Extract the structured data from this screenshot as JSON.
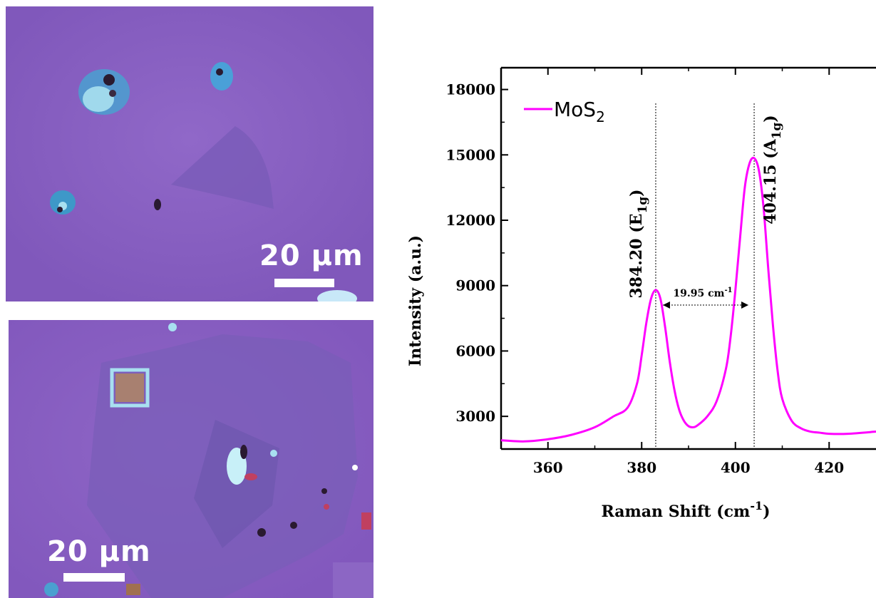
{
  "micrographs": [
    {
      "scale_label": "20 μm"
    },
    {
      "scale_label": "20 μm"
    }
  ],
  "colors": {
    "substrate": "#8a62c2",
    "flake": "#7d5ec0",
    "series": "#ff00ff"
  },
  "chart_data": {
    "type": "line",
    "xlabel": "Raman Shift (cm",
    "xlabel_sup": "-1",
    "xlabel_close": ")",
    "ylabel": "Intensity (a.u.)",
    "xlim": [
      350,
      430
    ],
    "ylim": [
      1500,
      19000
    ],
    "xticks": [
      360,
      380,
      400,
      420
    ],
    "yticks": [
      3000,
      6000,
      9000,
      12000,
      15000,
      18000
    ],
    "legend": {
      "position": "top-left"
    },
    "series": [
      {
        "name": "MoS",
        "name_sub": "2",
        "x": [
          350,
          355,
          360,
          365,
          370,
          374,
          377,
          379,
          380,
          381,
          382,
          383,
          384,
          385,
          386,
          387,
          388,
          389,
          390,
          391,
          392,
          394,
          396,
          398,
          399,
          400,
          401,
          402,
          403,
          404,
          405,
          406,
          407,
          408,
          409,
          410,
          412,
          414,
          416,
          418,
          420,
          424,
          430
        ],
        "y": [
          1900,
          1850,
          1950,
          2150,
          2500,
          3000,
          3400,
          4500,
          5800,
          7300,
          8400,
          8800,
          8400,
          7100,
          5500,
          4200,
          3300,
          2800,
          2550,
          2500,
          2600,
          3000,
          3700,
          5200,
          6700,
          8800,
          11200,
          13500,
          14600,
          14850,
          14300,
          12600,
          9800,
          7200,
          5100,
          3800,
          2800,
          2450,
          2300,
          2250,
          2200,
          2200,
          2300
        ]
      }
    ],
    "annotations": [
      {
        "text": "384.20 (E",
        "sub": "1g",
        "close": ")",
        "x": 383
      },
      {
        "text": "404.15 (A",
        "sub": "1g",
        "close": ")",
        "x": 404
      },
      {
        "text": "19.95 cm",
        "sup": "-1"
      }
    ]
  }
}
